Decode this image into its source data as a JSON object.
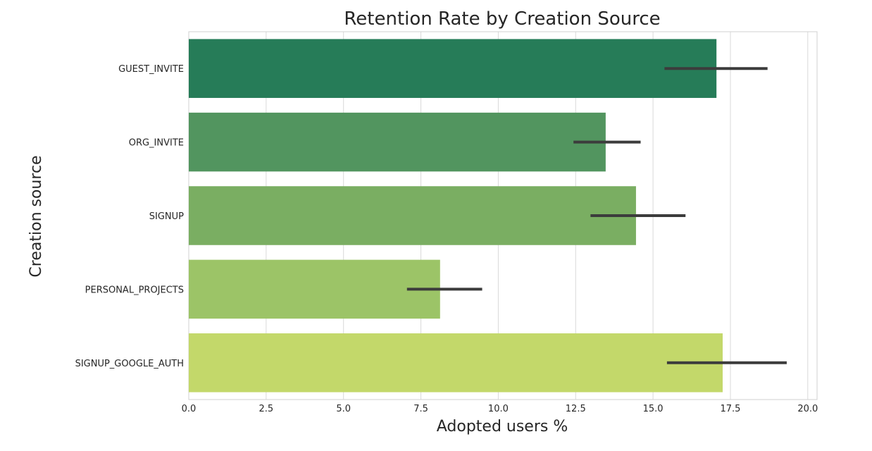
{
  "chart_data": {
    "type": "bar",
    "orientation": "horizontal",
    "title": "Retention Rate by Creation Source",
    "xlabel": "Adopted users %",
    "ylabel": "Creation source",
    "categories": [
      "GUEST_INVITE",
      "ORG_INVITE",
      "SIGNUP",
      "PERSONAL_PROJECTS",
      "SIGNUP_GOOGLE_AUTH"
    ],
    "values": [
      17.05,
      13.47,
      14.45,
      8.12,
      17.25
    ],
    "error_bars": [
      [
        15.37,
        18.7
      ],
      [
        12.43,
        14.6
      ],
      [
        12.98,
        16.05
      ],
      [
        7.05,
        9.48
      ],
      [
        15.45,
        19.32
      ]
    ],
    "colors": [
      "#267c58",
      "#52955f",
      "#7aae62",
      "#9cc467",
      "#c3d86a"
    ],
    "error_bar_color": "#3c3c3c",
    "xlim": [
      0,
      20.3
    ],
    "xticks": [
      0,
      2.5,
      5,
      7.5,
      10,
      12.5,
      15,
      17.5,
      20
    ],
    "xtick_labels": [
      "0.0",
      "2.5",
      "5.0",
      "7.5",
      "10.0",
      "12.5",
      "15.0",
      "17.5",
      "20.0"
    ],
    "grid": true,
    "legend": "none"
  }
}
